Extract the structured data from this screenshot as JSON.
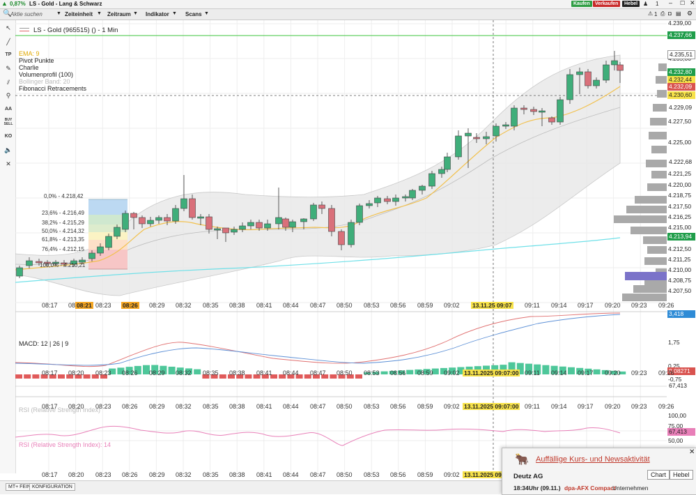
{
  "titlebar": {
    "change": "0,87%",
    "title": "LS - Gold - Lang & Schwarz",
    "btn_buy": "Kaufen",
    "btn_sell": "Verkaufen",
    "btn_lever": "Hebel",
    "count": "1"
  },
  "menubar": {
    "search": "Aktie suchen",
    "m1": "Zeiteinheit",
    "m2": "Zeitraum",
    "m3": "Indikator",
    "m4": "Scans",
    "count": "1"
  },
  "tools": [
    "TP",
    "AA",
    "BUY SELL",
    "KO"
  ],
  "chart_header": {
    "instrument": "LS - Gold (965515) () - 1 Min"
  },
  "legend": {
    "ema": "EMA: 9",
    "pivot": "Pivot Punkte",
    "charlie": "Charlie",
    "volprofile": "Volumenprofil (100)",
    "bollinger": "Bollinger Band: 20",
    "fibonacci": "Fibonacci Retracements"
  },
  "fib_labels": [
    "0,0% - 4.218,42",
    "23,6% - 4.216,49",
    "38,2% - 4.215,29",
    "50,0% - 4.214,32",
    "61,8% - 4.213,35",
    "76,4% - 4.212,15",
    "100,0% - 4.210,21"
  ],
  "price_axis": [
    "4.239,00",
    "4.235,00",
    "4.227,50",
    "4.225,00",
    "4.221,25",
    "4.220,00",
    "4.218,75",
    "4.217,50",
    "4.216,25",
    "4.215,00",
    "4.212,50",
    "4.211,25",
    "4.210,00",
    "4.208,75",
    "4.207,50"
  ],
  "price_tags": {
    "hline": "4.237,66",
    "high": "4.235,51",
    "t1": "4.232,80",
    "t2": "4.232,44",
    "t3": "4.232,09",
    "t4": "4.230,60",
    "t5": "4.229,09",
    "t6": "4.222,68",
    "t7": "4.213,94"
  },
  "time_axis": [
    "08:17",
    "08:20",
    "08:23",
    "08:26",
    "08:29",
    "08:32",
    "08:35",
    "08:38",
    "08:41",
    "08:44",
    "08:47",
    "08:50",
    "08:53",
    "08:56",
    "08:59",
    "09:02",
    "09:05",
    "09:11",
    "09:14",
    "09:17",
    "09:20",
    "09:23",
    "09:26"
  ],
  "time_highlights": {
    "h1": "08:21",
    "h2": "08:26",
    "cross": "13.11.25 09:07",
    "cross_full": "13.11.2025 09:07:00"
  },
  "macd": {
    "label": "MACD: 12 | 26 | 9",
    "axis": [
      "3,418",
      "1,75",
      "0,25",
      "-0,75"
    ],
    "tag": "0,08271",
    "tag2": "67,413"
  },
  "rsi": {
    "label": "RSI (Relative Strength Index): 14",
    "faded_label": "RSI (Relative Strength Index)",
    "axis": [
      "100,00",
      "75,00",
      "50,00"
    ],
    "tag": "67,413"
  },
  "bottom": {
    "b1": "MT+ FEIN",
    "b2": "KONFIGURATION"
  },
  "news": {
    "title": "Auffällige Kurs- und Newsaktivität",
    "btn_chart": "Chart",
    "btn_hebel": "Hebel",
    "company": "Deutz AG",
    "time": "18:34Uhr (09.11.)",
    "source": "dpa-AFX Compact",
    "category": "Unternehmen"
  },
  "colors": {
    "up": "#3fae7a",
    "down": "#d9707a",
    "ema": "#f2c14e",
    "trend": "#6fe0e8",
    "rsi": "#e87fb8",
    "macd_line": "#e07070",
    "signal": "#5b8fd6",
    "hist_pos": "#4ec79a",
    "hist_neg": "#e05a5a",
    "tag_green": "#1f9d4a",
    "tag_red": "#d9534f",
    "tag_yellow": "#f7e24a",
    "tag_blue": "#2e8bd6"
  }
}
